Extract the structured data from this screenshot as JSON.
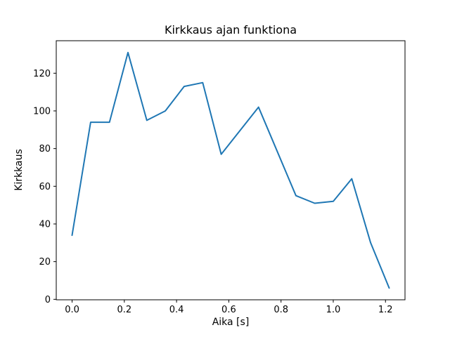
{
  "figure": {
    "background": "#ffffff"
  },
  "chart_data": {
    "type": "line",
    "title": "Kirkkaus ajan funktiona",
    "xlabel": "Aika [s]",
    "ylabel": "Kirkkaus",
    "line_color": "#1f77b4",
    "line_width": 2,
    "grid": false,
    "legend": null,
    "x": [
      0.0,
      0.071,
      0.143,
      0.214,
      0.286,
      0.357,
      0.429,
      0.5,
      0.571,
      0.714,
      0.857,
      0.929,
      1.0,
      1.071,
      1.143,
      1.214
    ],
    "y": [
      34,
      94,
      94,
      131,
      95,
      100,
      113,
      115,
      77,
      102,
      55,
      51,
      52,
      64,
      30,
      6
    ],
    "xlim": [
      -0.0607,
      1.2747
    ],
    "ylim": [
      -0.25,
      137.25
    ],
    "xticks": [
      0.0,
      0.2,
      0.4,
      0.6,
      0.8,
      1.0,
      1.2
    ],
    "xtick_labels": [
      "0.0",
      "0.2",
      "0.4",
      "0.6",
      "0.8",
      "1.0",
      "1.2"
    ],
    "yticks": [
      0,
      20,
      40,
      60,
      80,
      100,
      120
    ],
    "ytick_labels": [
      "0",
      "20",
      "40",
      "60",
      "80",
      "100",
      "120"
    ]
  }
}
